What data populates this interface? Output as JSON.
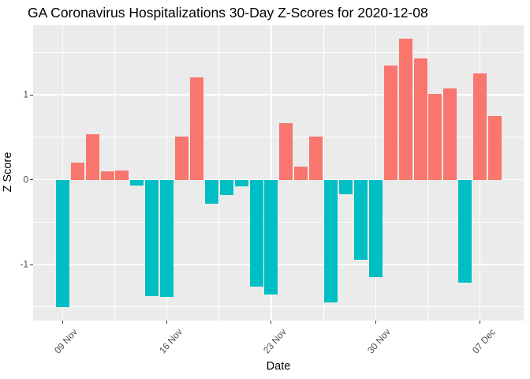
{
  "chart_data": {
    "type": "bar",
    "title": "GA Coronavirus Hospitalizations 30-Day Z-Scores for 2020-12-08",
    "xlabel": "Date",
    "ylabel": "Z Score",
    "dates": [
      "2020-11-09",
      "2020-11-10",
      "2020-11-11",
      "2020-11-12",
      "2020-11-13",
      "2020-11-14",
      "2020-11-15",
      "2020-11-16",
      "2020-11-17",
      "2020-11-18",
      "2020-11-19",
      "2020-11-20",
      "2020-11-21",
      "2020-11-22",
      "2020-11-23",
      "2020-11-24",
      "2020-11-25",
      "2020-11-26",
      "2020-11-27",
      "2020-11-28",
      "2020-11-29",
      "2020-11-30",
      "2020-12-01",
      "2020-12-02",
      "2020-12-03",
      "2020-12-04",
      "2020-12-05",
      "2020-12-06",
      "2020-12-07",
      "2020-12-08"
    ],
    "values": [
      -1.5,
      0.2,
      0.54,
      0.1,
      0.11,
      -0.07,
      -1.37,
      -1.38,
      0.51,
      1.21,
      -0.28,
      -0.18,
      -0.08,
      -1.26,
      -1.35,
      0.67,
      0.15,
      0.51,
      -1.45,
      -0.17,
      -0.94,
      -1.15,
      1.35,
      1.66,
      1.43,
      1.01,
      1.08,
      -1.21,
      1.25,
      0.75
    ],
    "bar_color_positive": "#F8766D",
    "bar_color_negative": "#00BFC4",
    "panel_background": "#EBEBEB",
    "gridline_color": "#FFFFFF",
    "tick_label_color": "#4D4D4D",
    "x_ticks": [
      {
        "index": 0,
        "label": "09 Nov"
      },
      {
        "index": 7,
        "label": "16 Nov"
      },
      {
        "index": 14,
        "label": "23 Nov"
      },
      {
        "index": 21,
        "label": "30 Nov"
      },
      {
        "index": 28,
        "label": "07 Dec"
      }
    ],
    "y_ticks": [
      {
        "value": -1,
        "label": "-1"
      },
      {
        "value": 0,
        "label": "0"
      },
      {
        "value": 1,
        "label": "1"
      }
    ],
    "y_minor": [
      -1.5,
      -0.5,
      0.5,
      1.5
    ],
    "ylim": [
      -1.66,
      1.82
    ],
    "legend": "none",
    "grid": true
  }
}
